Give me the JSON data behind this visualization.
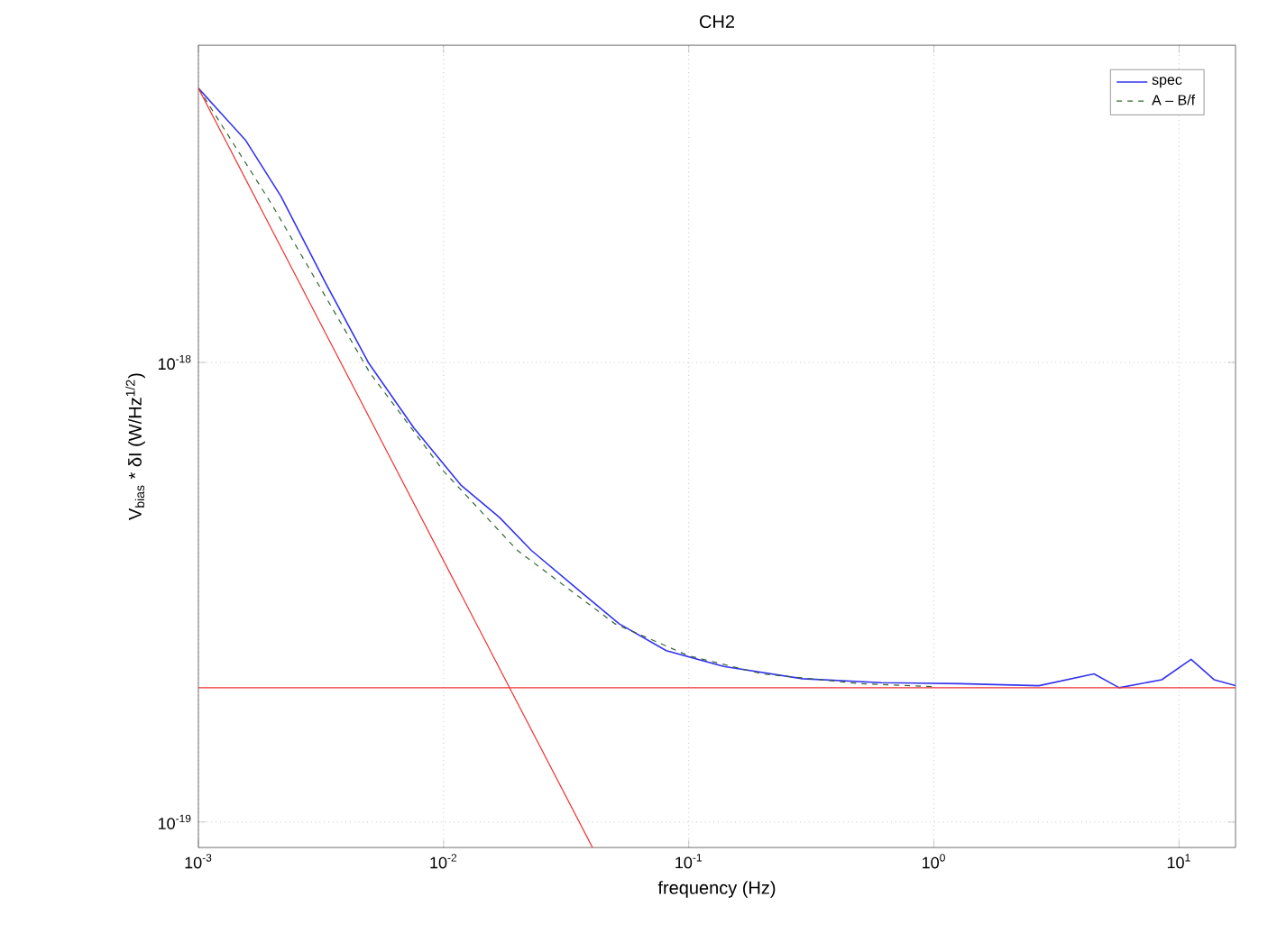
{
  "chart_data": {
    "type": "line",
    "title": "CH2",
    "xlabel": "frequency (Hz)",
    "ylabel": "V$_{bias}$ * δI (W/Hz$^{1/2}$)",
    "log": "xy",
    "xlim": [
      0.001,
      17
    ],
    "ylim": [
      8.8e-20,
      4.9e-18
    ],
    "xticks": [
      {
        "value": 0.001,
        "label": "10$^{-3}$"
      },
      {
        "value": 0.01,
        "label": "10$^{-2}$"
      },
      {
        "value": 0.1,
        "label": "10$^{-1}$"
      },
      {
        "value": 1,
        "label": "10$^{0}$"
      },
      {
        "value": 10,
        "label": "10$^{1}$"
      }
    ],
    "yticks": [
      {
        "value": 1e-19,
        "label": "10$^{-19}$"
      },
      {
        "value": 1e-18,
        "label": "10$^{-18}$"
      }
    ],
    "grid": true,
    "legend": "top right",
    "series": [
      {
        "name": "spec",
        "color": "#3333ee",
        "line_style": "solid",
        "x": [
          0.001,
          0.00156,
          0.00217,
          0.00332,
          0.00493,
          0.00757,
          0.0118,
          0.0169,
          0.0228,
          0.0355,
          0.052,
          0.081,
          0.139,
          0.291,
          0.61,
          1.28,
          2.68,
          4.5,
          5.7,
          8.5,
          11.2,
          13.9,
          17
        ],
        "values": [
          3.95e-18,
          3.04e-18,
          2.3e-18,
          1.48e-18,
          1e-18,
          7.2e-19,
          5.4e-19,
          4.6e-19,
          3.9e-19,
          3.2e-19,
          2.7e-19,
          2.36e-19,
          2.18e-19,
          2.05e-19,
          2.01e-19,
          2e-19,
          1.98e-19,
          2.1e-19,
          1.96e-19,
          2.04e-19,
          2.26e-19,
          2.04e-19,
          1.98e-19
        ]
      },
      {
        "name": "A – B/f",
        "color": "#336633",
        "line_style": "dashed",
        "x": [
          0.001,
          0.002,
          0.005,
          0.01,
          0.02,
          0.05,
          0.1,
          0.2,
          0.5,
          1
        ],
        "values": [
          3.95e-18,
          2.2e-18,
          9.5e-19,
          5.8e-19,
          3.9e-19,
          2.7e-19,
          2.3e-19,
          2.1e-19,
          2e-19,
          1.97e-19
        ]
      },
      {
        "color": "#ee3333",
        "line_style": "solid",
        "x": [
          0.001,
          0.0405
        ],
        "values": [
          3.95e-18,
          8.8e-20
        ]
      }
    ],
    "ref_lines": [
      {
        "axis": "y",
        "value": 1.96e-19,
        "color": "#ee3333"
      }
    ]
  }
}
